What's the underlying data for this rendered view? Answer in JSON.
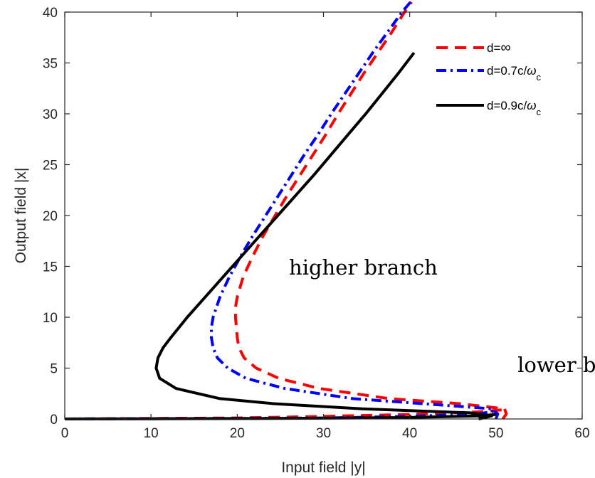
{
  "chart_data": {
    "type": "line",
    "title": "",
    "xlabel": "Input field |y|",
    "ylabel": "Output field |x|",
    "xlim": [
      0,
      60
    ],
    "ylim": [
      0,
      40
    ],
    "xticks": [
      0,
      10,
      20,
      30,
      40,
      50,
      60
    ],
    "yticks": [
      0,
      5,
      10,
      15,
      20,
      25,
      30,
      35,
      40
    ],
    "grid": false,
    "legend_position": "top-right",
    "series": [
      {
        "name": "d=∞",
        "label_parts": [
          "d=",
          "∞",
          "",
          ""
        ],
        "color": "#ff0000",
        "style": "dashed",
        "y_at_x": [
          [
            0.0,
            50.8
          ],
          [
            0.5,
            51.2
          ],
          [
            1.0,
            51.0
          ],
          [
            1.5,
            45.8
          ],
          [
            2.0,
            37.6
          ],
          [
            3.0,
            29.5
          ],
          [
            4.0,
            24.8
          ],
          [
            5.0,
            22.2
          ],
          [
            6.0,
            20.8
          ],
          [
            7.0,
            20.2
          ],
          [
            8.0,
            20.0
          ],
          [
            9.0,
            19.9
          ],
          [
            10.0,
            19.8
          ],
          [
            11.0,
            19.8
          ],
          [
            12.0,
            20.0
          ],
          [
            14.0,
            20.7
          ],
          [
            16.0,
            21.8
          ],
          [
            18.0,
            23.0
          ],
          [
            20.0,
            24.4
          ],
          [
            22.0,
            25.8
          ],
          [
            24.0,
            27.3
          ],
          [
            26.0,
            28.8
          ],
          [
            28.0,
            30.3
          ],
          [
            30.0,
            31.7
          ],
          [
            32.0,
            33.2
          ],
          [
            34.0,
            34.7
          ],
          [
            36.0,
            36.3
          ],
          [
            38.0,
            37.9
          ],
          [
            40.0,
            39.4
          ],
          [
            41.0,
            40.2
          ]
        ],
        "lower_path": [
          [
            0.0,
            0.0
          ],
          [
            10.0,
            0.05
          ],
          [
            20.0,
            0.1
          ],
          [
            30.0,
            0.25
          ],
          [
            40.0,
            0.45
          ],
          [
            48.0,
            0.7
          ],
          [
            50.8,
            0.9
          ]
        ]
      },
      {
        "name": "d=0.7c/ωc",
        "label_parts": [
          "d=0.7c/",
          "ω",
          "c",
          ""
        ],
        "color": "#0000ff",
        "style": "dashdot",
        "y_at_x": [
          [
            0.0,
            50.0
          ],
          [
            0.5,
            50.2
          ],
          [
            1.0,
            49.5
          ],
          [
            1.5,
            41.5
          ],
          [
            2.0,
            33.4
          ],
          [
            3.0,
            25.5
          ],
          [
            4.0,
            21.0
          ],
          [
            5.0,
            18.9
          ],
          [
            6.0,
            17.7
          ],
          [
            7.0,
            17.2
          ],
          [
            8.0,
            17.0
          ],
          [
            9.0,
            17.0
          ],
          [
            10.0,
            17.2
          ],
          [
            12.0,
            18.0
          ],
          [
            14.0,
            19.1
          ],
          [
            16.0,
            20.4
          ],
          [
            18.0,
            21.8
          ],
          [
            20.0,
            23.3
          ],
          [
            22.0,
            24.8
          ],
          [
            24.0,
            26.3
          ],
          [
            26.0,
            27.8
          ],
          [
            28.0,
            29.4
          ],
          [
            30.0,
            30.9
          ],
          [
            32.0,
            32.5
          ],
          [
            34.0,
            34.1
          ],
          [
            36.0,
            35.7
          ],
          [
            38.0,
            37.4
          ],
          [
            40.0,
            39.1
          ],
          [
            41.0,
            40.1
          ]
        ],
        "lower_path": [
          [
            0.0,
            0.0
          ],
          [
            10.0,
            0.03
          ],
          [
            20.0,
            0.05
          ],
          [
            30.0,
            0.1
          ],
          [
            40.0,
            0.25
          ],
          [
            48.0,
            0.5
          ],
          [
            50.0,
            0.8
          ]
        ]
      },
      {
        "name": "d=0.9c/ωc",
        "label_parts": [
          "d=0.9c/",
          "ω",
          "c",
          ""
        ],
        "color": "#000000",
        "style": "solid",
        "y_at_x": [
          [
            0.0,
            48.0
          ],
          [
            0.3,
            49.5
          ],
          [
            0.6,
            47.0
          ],
          [
            1.0,
            34.5
          ],
          [
            1.5,
            24.2
          ],
          [
            2.0,
            18.0
          ],
          [
            3.0,
            12.9
          ],
          [
            4.0,
            11.0
          ],
          [
            5.0,
            10.6
          ],
          [
            6.0,
            10.8
          ],
          [
            7.0,
            11.4
          ],
          [
            8.0,
            12.3
          ],
          [
            10.0,
            14.2
          ],
          [
            12.0,
            16.3
          ],
          [
            14.0,
            18.4
          ],
          [
            16.0,
            20.5
          ],
          [
            18.0,
            22.6
          ],
          [
            20.0,
            24.7
          ],
          [
            22.0,
            26.8
          ],
          [
            24.0,
            28.9
          ],
          [
            26.0,
            30.9
          ],
          [
            28.0,
            32.9
          ],
          [
            30.0,
            34.9
          ],
          [
            32.0,
            36.8
          ],
          [
            34.0,
            38.7
          ],
          [
            36.0,
            40.5
          ]
        ],
        "lower_path": [
          [
            0.0,
            0.0
          ],
          [
            10.0,
            0.02
          ],
          [
            20.0,
            0.04
          ],
          [
            30.0,
            0.08
          ],
          [
            40.0,
            0.15
          ],
          [
            48.0,
            0.3
          ],
          [
            50.0,
            0.45
          ]
        ]
      }
    ],
    "annotations": [
      {
        "text": "higher branch",
        "x": 26,
        "y": 14.2
      },
      {
        "text": "lower branch",
        "x": 52.5,
        "y": 4.6
      }
    ]
  }
}
